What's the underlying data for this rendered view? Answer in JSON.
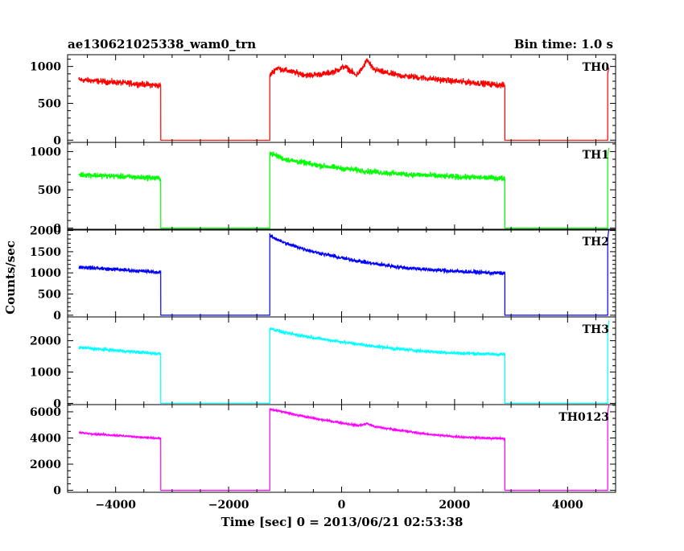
{
  "header": {
    "title": "ae130621025338_wam0_trn",
    "bin_time": "Bin time: 1.0 s"
  },
  "chart_data": {
    "type": "line",
    "x_label": "Time [sec] 0 = 2013/06/21 02:53:38",
    "y_label": "Counts/sec",
    "xlim": [
      -4850,
      4850
    ],
    "x_ticks": [
      -4000,
      -2000,
      0,
      2000,
      4000
    ],
    "x_tick_labels": [
      "−4000",
      "−2000",
      "0",
      "2000",
      "4000"
    ],
    "x_minor_step": 500,
    "panels": [
      {
        "name": "TH0",
        "color": "#ff0000",
        "ylim": [
          -30,
          1160
        ],
        "y_ticks": [
          0,
          500,
          1000
        ],
        "y_tick_labels": [
          "0",
          "500",
          "1000"
        ],
        "y_minor_step": 100,
        "noise": 45,
        "segments": [
          {
            "x": [
              -4650,
              -3200
            ],
            "y": [
              820,
              740
            ]
          },
          {
            "x": [
              -1270,
              -1150,
              -900,
              -600,
              -300,
              -100,
              50,
              150,
              250,
              350,
              450,
              550,
              700,
              1000,
              1500,
              2000,
              2500,
              2890
            ],
            "y": [
              880,
              980,
              930,
              880,
              900,
              940,
              1000,
              950,
              880,
              950,
              1090,
              970,
              930,
              880,
              840,
              800,
              770,
              740
            ]
          },
          {
            "x": [
              4710,
              4730
            ],
            "y": [
              900,
              980
            ]
          }
        ]
      },
      {
        "name": "TH1",
        "color": "#00ff00",
        "ylim": [
          -25,
          1120
        ],
        "y_ticks": [
          0,
          500,
          1000
        ],
        "y_tick_labels": [
          "0",
          "500",
          "1000"
        ],
        "y_minor_step": 100,
        "noise": 40,
        "segments": [
          {
            "x": [
              -4650,
              -3200
            ],
            "y": [
              700,
              650
            ]
          },
          {
            "x": [
              -1270,
              -1000,
              -500,
              0,
              500,
              1000,
              1500,
              2000,
              2500,
              2890
            ],
            "y": [
              980,
              900,
              830,
              780,
              740,
              710,
              690,
              670,
              660,
              650
            ]
          },
          {
            "x": [
              4710,
              4730
            ],
            "y": [
              950,
              1050
            ]
          }
        ]
      },
      {
        "name": "TH2",
        "color": "#0000ff",
        "ylim": [
          -40,
          2030
        ],
        "y_ticks": [
          0,
          500,
          1000,
          1500,
          2000
        ],
        "y_tick_labels": [
          "0",
          "500",
          "1000",
          "1500",
          "2000"
        ],
        "y_minor_step": 100,
        "noise": 50,
        "segments": [
          {
            "x": [
              -4650,
              -3200
            ],
            "y": [
              1140,
              1010
            ]
          },
          {
            "x": [
              -1270,
              -1000,
              -500,
              0,
              500,
              1000,
              1500,
              2000,
              2500,
              2890
            ],
            "y": [
              1880,
              1700,
              1500,
              1350,
              1230,
              1140,
              1080,
              1040,
              1010,
              990
            ]
          },
          {
            "x": [
              4710,
              4730
            ],
            "y": [
              1800,
              2030
            ]
          }
        ]
      },
      {
        "name": "TH3",
        "color": "#00ffff",
        "ylim": [
          -40,
          2760
        ],
        "y_ticks": [
          0,
          1000,
          2000
        ],
        "y_tick_labels": [
          "0",
          "1000",
          "2000"
        ],
        "y_minor_step": 200,
        "noise": 60,
        "segments": [
          {
            "x": [
              -4650,
              -3200
            ],
            "y": [
              1780,
              1580
            ]
          },
          {
            "x": [
              -1270,
              -1000,
              -500,
              0,
              500,
              1000,
              1500,
              2000,
              2500,
              2890
            ],
            "y": [
              2400,
              2250,
              2100,
              1960,
              1840,
              1740,
              1660,
              1610,
              1580,
              1560
            ]
          },
          {
            "x": [
              4710,
              4730
            ],
            "y": [
              2300,
              2650
            ]
          }
        ]
      },
      {
        "name": "TH0123",
        "color": "#ff00ff",
        "ylim": [
          -150,
          6550
        ],
        "y_ticks": [
          0,
          2000,
          4000,
          6000
        ],
        "y_tick_labels": [
          "0",
          "2000",
          "4000",
          "6000"
        ],
        "y_minor_step": 500,
        "noise": 90,
        "segments": [
          {
            "x": [
              -4650,
              -3200
            ],
            "y": [
              4400,
              3950
            ]
          },
          {
            "x": [
              -1270,
              -1000,
              -500,
              0,
              300,
              450,
              600,
              1000,
              1500,
              2000,
              2500,
              2890
            ],
            "y": [
              6200,
              5950,
              5500,
              5150,
              4950,
              5100,
              4850,
              4600,
              4300,
              4100,
              4000,
              3950
            ]
          },
          {
            "x": [
              4710,
              4730
            ],
            "y": [
              5900,
              6500
            ]
          }
        ]
      }
    ]
  }
}
